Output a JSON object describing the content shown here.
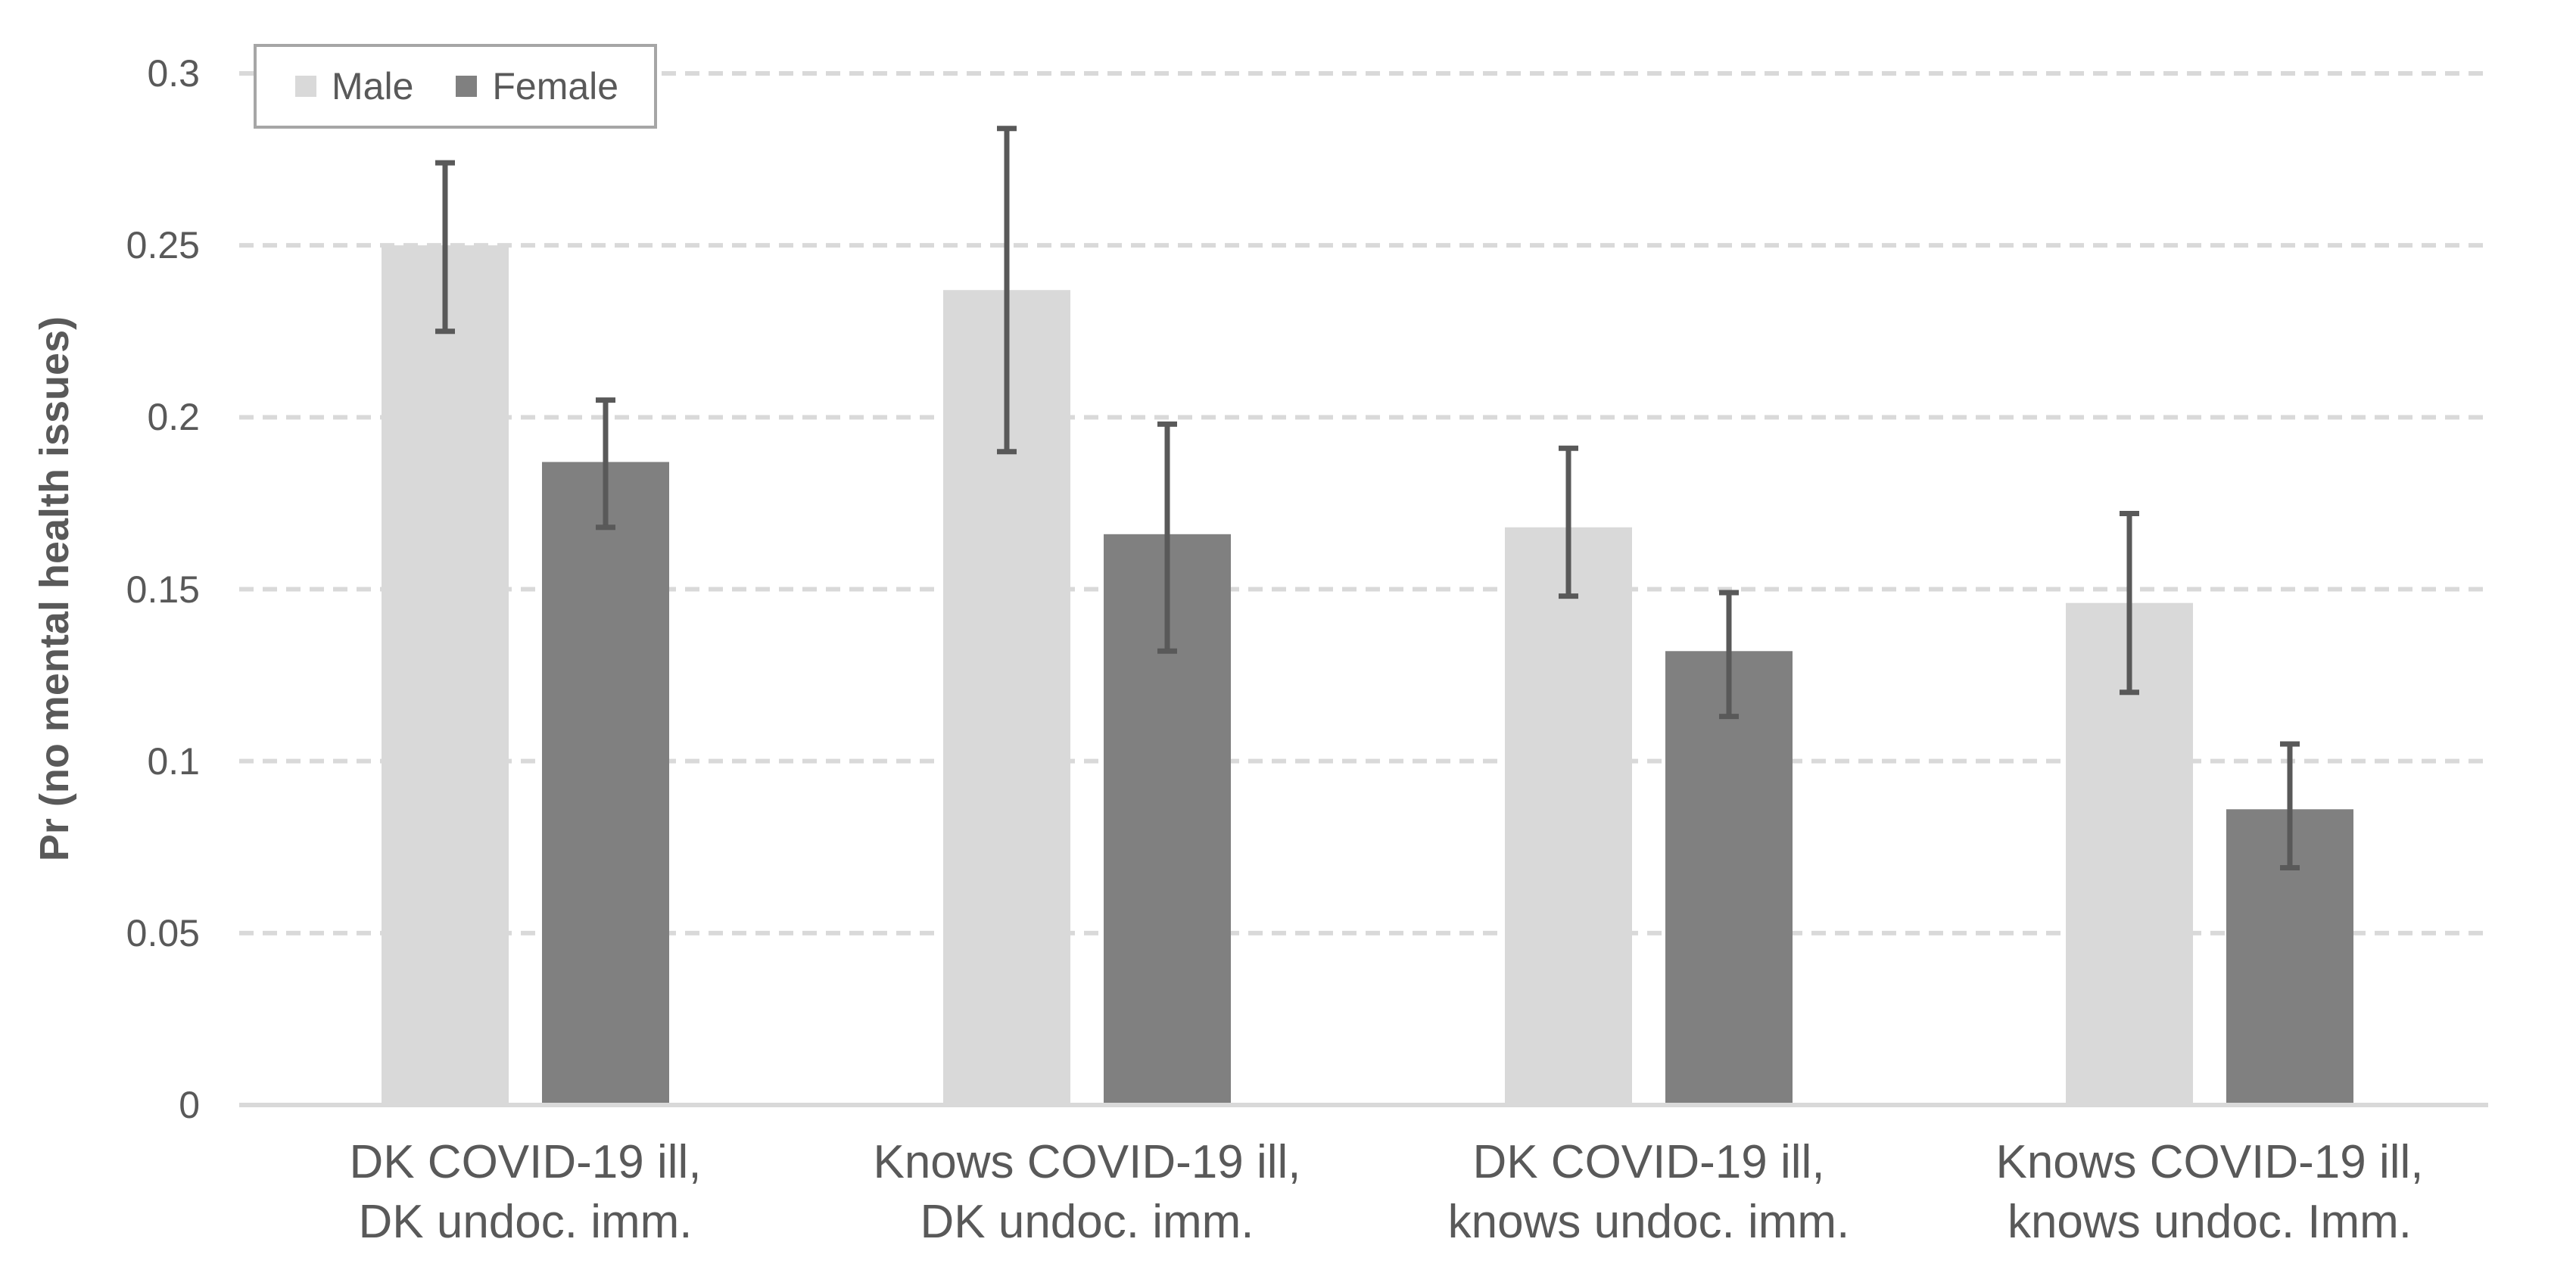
{
  "chart_data": {
    "type": "bar",
    "title": "",
    "xlabel": "",
    "ylabel": "Pr (no mental health issues)",
    "ylim": [
      0,
      0.3
    ],
    "ytick_step": 0.05,
    "ytick_labels": [
      "0",
      "0.05",
      "0.1",
      "0.15",
      "0.2",
      "0.25",
      "0.3"
    ],
    "grid": "horizontal dashed gridlines",
    "legend_position": "top-left inside plot",
    "categories": [
      "DK COVID-19 ill,\nDK undoc. imm.",
      "Knows COVID-19 ill,\nDK undoc. imm.",
      "DK COVID-19 ill,\nknows undoc. imm.",
      "Knows COVID-19 ill,\nknows undoc. Imm."
    ],
    "series": [
      {
        "name": "Male",
        "color": "#d9d9d9",
        "values": [
          0.25,
          0.237,
          0.168,
          0.146
        ],
        "ci_low": [
          0.225,
          0.19,
          0.148,
          0.12
        ],
        "ci_high": [
          0.274,
          0.284,
          0.191,
          0.172
        ]
      },
      {
        "name": "Female",
        "color": "#808080",
        "values": [
          0.187,
          0.166,
          0.132,
          0.086
        ],
        "ci_low": [
          0.168,
          0.132,
          0.113,
          0.069
        ],
        "ci_high": [
          0.205,
          0.198,
          0.149,
          0.105
        ]
      }
    ],
    "error_bar_color": "#595959"
  },
  "colors": {
    "background": "#ffffff",
    "gridline": "#d9d9d9",
    "axis_line": "#d9d9d9",
    "tick_label_text": "#595959",
    "category_label_text": "#595959",
    "axis_title_text": "#595959",
    "legend_border": "#a6a6a6",
    "legend_text": "#595959"
  }
}
